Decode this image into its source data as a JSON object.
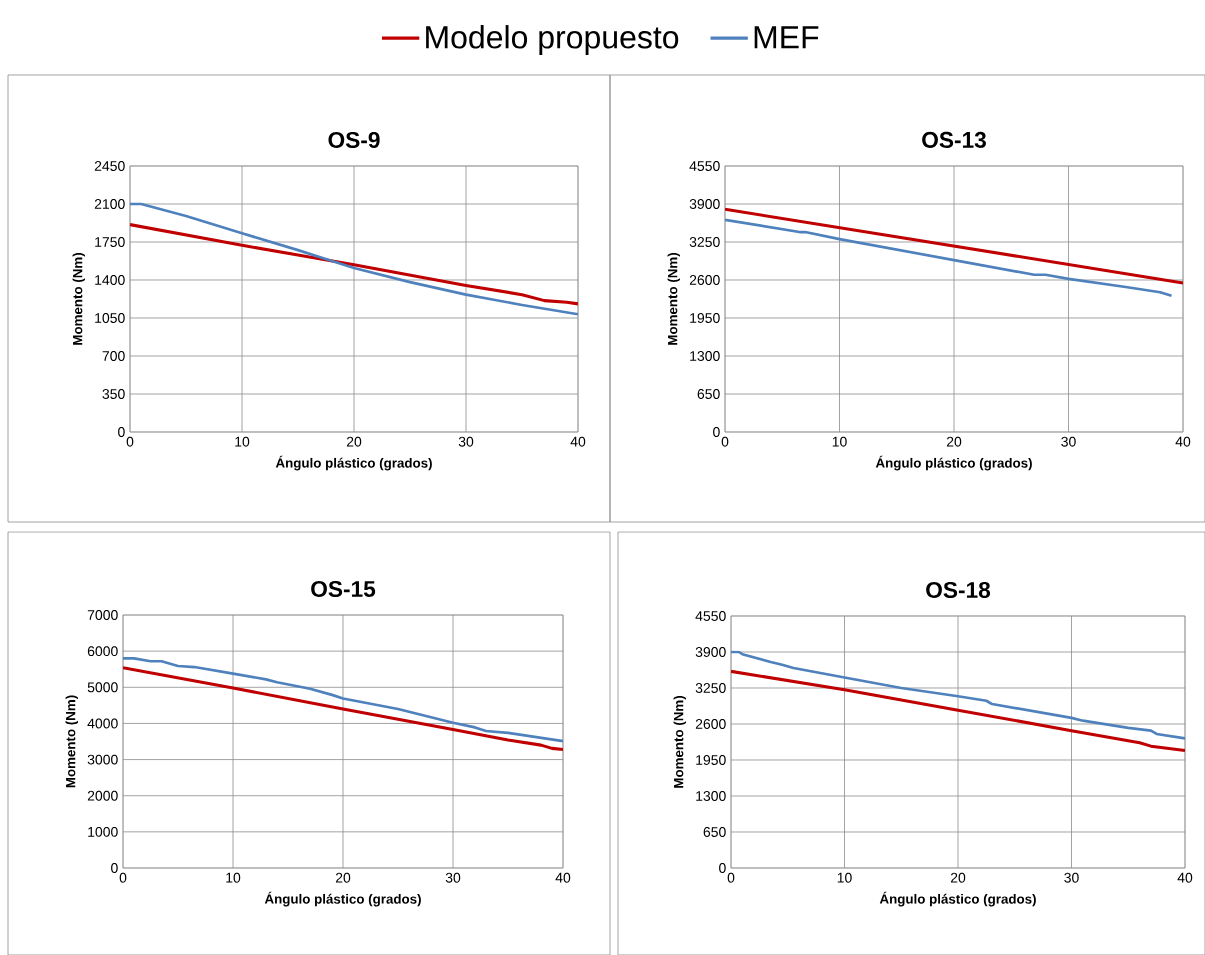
{
  "chart_data": [
    {
      "type": "line",
      "title": "OS-9",
      "xlabel": "Ángulo plástico (grados)",
      "ylabel": "Momento (Nm)",
      "xlim": [
        0,
        40
      ],
      "xticks": [
        0,
        10,
        20,
        30,
        40
      ],
      "ylim": [
        0,
        2450
      ],
      "yticks": [
        0,
        350,
        700,
        1050,
        1400,
        1750,
        2100,
        2450
      ],
      "grid": true,
      "legend": "top",
      "series": [
        {
          "name": "Modelo propuesto",
          "color": "#c00000",
          "x": [
            0,
            10,
            20,
            30,
            35,
            37,
            39,
            40
          ],
          "values": [
            1910,
            1720,
            1540,
            1350,
            1265,
            1210,
            1195,
            1180
          ]
        },
        {
          "name": "MEF",
          "color": "#4f81bd",
          "x": [
            0,
            1,
            5,
            10,
            15,
            20,
            25,
            30,
            35,
            40
          ],
          "values": [
            2100,
            2100,
            1990,
            1830,
            1675,
            1510,
            1380,
            1265,
            1170,
            1085
          ]
        }
      ]
    },
    {
      "type": "line",
      "title": "OS-13",
      "xlabel": "Ángulo plástico (grados)",
      "ylabel": "Momento (Nm)",
      "xlim": [
        0,
        40
      ],
      "xticks": [
        0,
        10,
        20,
        30,
        40
      ],
      "ylim": [
        0,
        4550
      ],
      "yticks": [
        0,
        650,
        1300,
        1950,
        2600,
        3250,
        3900,
        4550
      ],
      "grid": true,
      "series": [
        {
          "color": "#c00000",
          "x": [
            0,
            20,
            40
          ],
          "values": [
            3810,
            3180,
            2550
          ]
        },
        {
          "color": "#4f81bd",
          "x": [
            0,
            6.5,
            7,
            10,
            20,
            27,
            28,
            30,
            35,
            38,
            39
          ],
          "values": [
            3630,
            3420,
            3420,
            3300,
            2940,
            2690,
            2690,
            2620,
            2480,
            2390,
            2330
          ]
        }
      ]
    },
    {
      "type": "line",
      "title": "OS-15",
      "xlabel": "Ángulo plástico (grados)",
      "ylabel": "Momento (Nm)",
      "xlim": [
        0,
        40
      ],
      "xticks": [
        0,
        10,
        20,
        30,
        40
      ],
      "ylim": [
        0,
        7000
      ],
      "yticks": [
        0,
        1000,
        2000,
        3000,
        4000,
        5000,
        6000,
        7000
      ],
      "grid": true,
      "series": [
        {
          "color": "#c00000",
          "x": [
            0,
            10,
            20,
            30,
            35,
            38,
            39,
            40
          ],
          "values": [
            5540,
            4980,
            4400,
            3830,
            3540,
            3400,
            3310,
            3280
          ]
        },
        {
          "color": "#4f81bd",
          "x": [
            0,
            1,
            2.5,
            3.5,
            5,
            6.5,
            10,
            13,
            14,
            17,
            19,
            20,
            25,
            30,
            32,
            33,
            35,
            40
          ],
          "values": [
            5800,
            5800,
            5720,
            5720,
            5590,
            5560,
            5380,
            5220,
            5140,
            4960,
            4790,
            4690,
            4400,
            4020,
            3890,
            3790,
            3740,
            3510
          ]
        }
      ]
    },
    {
      "type": "line",
      "title": "OS-18",
      "xlabel": "Ángulo plástico (grados)",
      "ylabel": "Momento (Nm)",
      "xlim": [
        0,
        40
      ],
      "xticks": [
        0,
        10,
        20,
        30,
        40
      ],
      "ylim": [
        0,
        4550
      ],
      "yticks": [
        0,
        650,
        1300,
        1950,
        2600,
        3250,
        3900,
        4550
      ],
      "grid": true,
      "series": [
        {
          "color": "#c00000",
          "x": [
            0,
            10,
            20,
            30,
            36,
            37,
            40
          ],
          "values": [
            3550,
            3220,
            2850,
            2480,
            2260,
            2200,
            2120
          ]
        },
        {
          "color": "#4f81bd",
          "x": [
            0,
            0.7,
            1,
            3.5,
            4.5,
            5.5,
            10,
            15,
            20,
            22.5,
            23,
            30,
            31,
            35,
            37,
            37.5,
            40
          ],
          "values": [
            3900,
            3900,
            3860,
            3720,
            3670,
            3610,
            3440,
            3250,
            3100,
            3020,
            2960,
            2710,
            2660,
            2530,
            2480,
            2420,
            2340
          ]
        }
      ]
    }
  ]
}
